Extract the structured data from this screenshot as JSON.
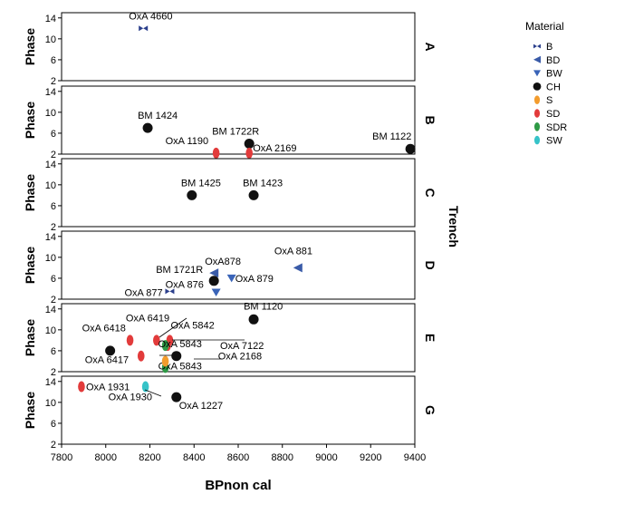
{
  "chart_data": {
    "type": "scatter",
    "xlabel": "BPnon cal",
    "ylabel": "Phase",
    "facet_label": "Trench",
    "x_ticks": [
      7800,
      8000,
      8200,
      8400,
      8600,
      8800,
      9000,
      9200,
      9400
    ],
    "xlim": [
      7800,
      9400
    ],
    "y_ticks": [
      2,
      6,
      10,
      14
    ],
    "ylim": [
      2,
      15
    ],
    "legend": {
      "title": "Material",
      "placement": "right",
      "items": [
        {
          "label": "B",
          "marker": "bowtie",
          "color": "#2b3f8c"
        },
        {
          "label": "BD",
          "marker": "triangle-left",
          "color": "#3a5ba8"
        },
        {
          "label": "BW",
          "marker": "triangle-down",
          "color": "#3a64b8"
        },
        {
          "label": "CH",
          "marker": "circle",
          "color": "#111111"
        },
        {
          "label": "S",
          "marker": "ellipse",
          "color": "#f39c2d"
        },
        {
          "label": "SD",
          "marker": "ellipse",
          "color": "#e23b3b"
        },
        {
          "label": "SDR",
          "marker": "ellipse",
          "color": "#2e9a45"
        },
        {
          "label": "SW",
          "marker": "ellipse",
          "color": "#36c3c8"
        }
      ]
    },
    "panels": [
      {
        "trench": "A",
        "show_ylabel": true,
        "points": [
          {
            "label": "OxA 4660",
            "x": 8170,
            "y": 12,
            "material": "B"
          }
        ]
      },
      {
        "trench": "B",
        "show_ylabel": true,
        "points": [
          {
            "label": "BM 1424",
            "x": 8190,
            "y": 7,
            "material": "CH"
          },
          {
            "label": "OxA 1190",
            "x": 8500,
            "y": 2.2,
            "material": "SD"
          },
          {
            "label": "BM 1722R",
            "x": 8650,
            "y": 4,
            "material": "CH"
          },
          {
            "label": "OxA 2169",
            "x": 8650,
            "y": 2.2,
            "material": "SD"
          },
          {
            "label": "BM 1122",
            "x": 9380,
            "y": 3,
            "material": "CH"
          }
        ]
      },
      {
        "trench": "C",
        "show_ylabel": true,
        "points": [
          {
            "label": "BM 1425",
            "x": 8390,
            "y": 8,
            "material": "CH"
          },
          {
            "label": "BM 1423",
            "x": 8670,
            "y": 8,
            "material": "CH"
          }
        ]
      },
      {
        "trench": "D",
        "show_ylabel": true,
        "points": [
          {
            "label": "OxA 881",
            "x": 8870,
            "y": 8,
            "material": "BD"
          },
          {
            "label": "OxA878",
            "x": 8490,
            "y": 7,
            "material": "BD"
          },
          {
            "label": "BM 1721R",
            "x": 8490,
            "y": 5.5,
            "material": "CH"
          },
          {
            "label": "OxA 879",
            "x": 8570,
            "y": 6,
            "material": "BW"
          },
          {
            "label": "OxA 876",
            "x": 8500,
            "y": 3.3,
            "material": "BW"
          },
          {
            "label": "OxA 877",
            "x": 8290,
            "y": 3.5,
            "material": "B"
          }
        ]
      },
      {
        "trench": "E",
        "show_ylabel": true,
        "points": [
          {
            "label": "BM 1120",
            "x": 8670,
            "y": 12,
            "material": "CH"
          },
          {
            "label": "OxA 6419",
            "x": 8230,
            "y": 8,
            "material": "SD"
          },
          {
            "label": "OxA 6418",
            "x": 8110,
            "y": 8,
            "material": "SD"
          },
          {
            "label": "OxA 5842",
            "x": 8290,
            "y": 8,
            "material": "SD"
          },
          {
            "label": "OxA 7122",
            "x": 8280,
            "y": 7,
            "material": "SD"
          },
          {
            "label": "OxA 5843",
            "x": 8270,
            "y": 7,
            "material": "SDR"
          },
          {
            "label": "OxA 6417",
            "x": 8160,
            "y": 5,
            "material": "SD"
          },
          {
            "label": "",
            "x": 8020,
            "y": 6,
            "material": "CH"
          },
          {
            "label": "OxA 2168",
            "x": 8320,
            "y": 5,
            "material": "CH"
          },
          {
            "label": "OxA 5843",
            "x": 8270,
            "y": 2.8,
            "material": "SDR"
          },
          {
            "label": "",
            "x": 8270,
            "y": 4,
            "material": "S"
          }
        ]
      },
      {
        "trench": "G",
        "show_ylabel": true,
        "points": [
          {
            "label": "OxA 1931",
            "x": 7890,
            "y": 13,
            "material": "SD"
          },
          {
            "label": "OxA 1930",
            "x": 8180,
            "y": 13,
            "material": "SW"
          },
          {
            "label": "OxA 1227",
            "x": 8320,
            "y": 11,
            "material": "CH"
          }
        ]
      }
    ]
  }
}
